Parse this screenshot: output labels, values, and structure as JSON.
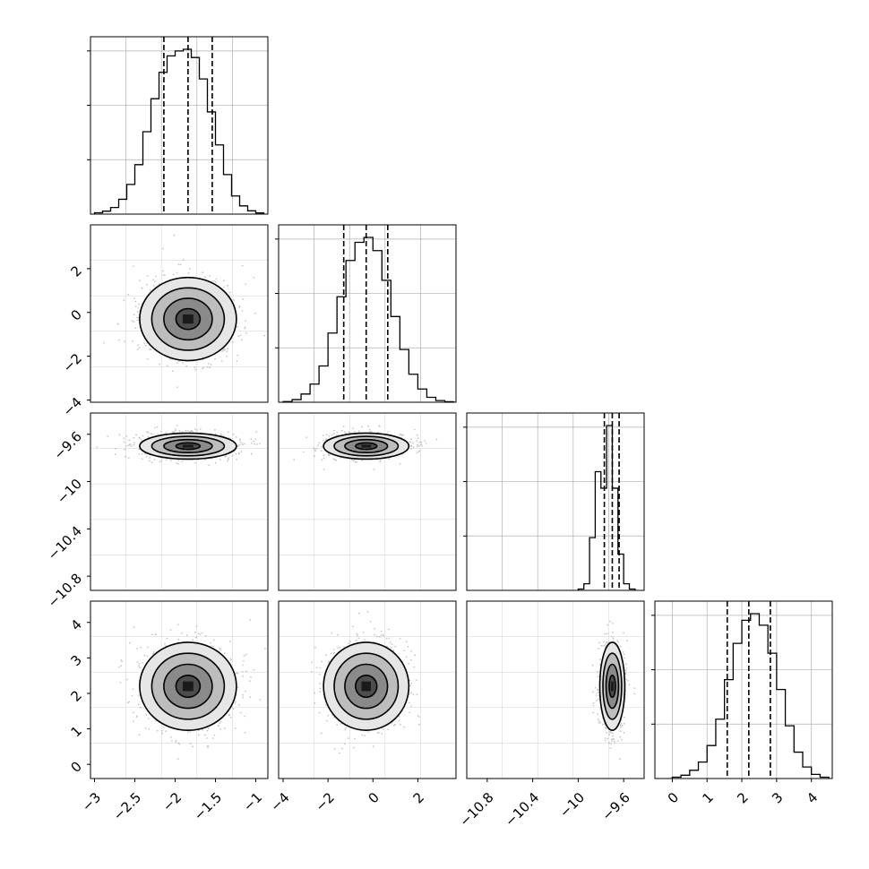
{
  "figure": {
    "kind": "corner-plot",
    "grid": true,
    "colors": {
      "line": "#000000",
      "grid": "#b0b0b0",
      "points": "#9a9a9a",
      "background": "#ffffff"
    }
  },
  "chart_data": [
    {
      "panel": "hist-p0",
      "type": "bar",
      "x_range": [
        -3.05,
        -0.85
      ],
      "bin_edges": [
        -3.0,
        -2.9,
        -2.8,
        -2.7,
        -2.6,
        -2.5,
        -2.4,
        -2.3,
        -2.2,
        -2.1,
        -2.0,
        -1.9,
        -1.8,
        -1.7,
        -1.6,
        -1.5,
        -1.4,
        -1.3,
        -1.2,
        -1.1,
        -1.0,
        -0.9
      ],
      "values": [
        0.008,
        0.018,
        0.04,
        0.09,
        0.18,
        0.3,
        0.5,
        0.7,
        0.86,
        0.96,
        0.99,
        1.0,
        0.95,
        0.82,
        0.62,
        0.42,
        0.24,
        0.11,
        0.05,
        0.02,
        0.007
      ],
      "quantile_lines": [
        -2.14,
        -1.84,
        -1.54
      ]
    },
    {
      "panel": "scatter-p1-vs-p0",
      "type": "scatter",
      "x_range": [
        -3.05,
        -0.85
      ],
      "y_range": [
        -4.1,
        4.0
      ],
      "yticks": [
        -4,
        -2,
        0,
        2
      ],
      "center": [
        -1.84,
        -0.3
      ],
      "spread": [
        0.3,
        0.95
      ],
      "contour_levels": [
        "0.5 sigma",
        "1 sigma",
        "1.5 sigma",
        "2 sigma"
      ]
    },
    {
      "panel": "hist-p1",
      "type": "bar",
      "x_range": [
        -4.2,
        3.7
      ],
      "bin_edges": [
        -4.0,
        -3.6,
        -3.2,
        -2.8,
        -2.4,
        -2.0,
        -1.6,
        -1.2,
        -0.8,
        -0.4,
        0.0,
        0.4,
        0.8,
        1.2,
        1.6,
        2.0,
        2.4,
        2.8,
        3.2,
        3.6
      ],
      "values": [
        0.004,
        0.016,
        0.05,
        0.11,
        0.22,
        0.42,
        0.64,
        0.86,
        0.97,
        1.0,
        0.92,
        0.74,
        0.52,
        0.32,
        0.17,
        0.08,
        0.03,
        0.01,
        0.003
      ],
      "quantile_lines": [
        -1.3,
        -0.3,
        0.66
      ]
    },
    {
      "panel": "scatter-p2-vs-p0",
      "type": "scatter",
      "x_range": [
        -3.05,
        -0.85
      ],
      "y_range": [
        -10.92,
        -9.42
      ],
      "yticks": [
        -10.8,
        -10.4,
        -10.0,
        -9.6
      ],
      "center": [
        -1.84,
        -9.7
      ],
      "spread": [
        0.3,
        0.055
      ],
      "contour_levels": [
        "0.5 sigma",
        "1 sigma",
        "1.5 sigma",
        "2 sigma"
      ]
    },
    {
      "panel": "scatter-p2-vs-p1",
      "type": "scatter",
      "x_range": [
        -4.2,
        3.7
      ],
      "y_range": [
        -10.92,
        -9.42
      ],
      "center": [
        -0.3,
        -9.7
      ],
      "spread": [
        0.95,
        0.055
      ],
      "contour_levels": [
        "0.5 sigma",
        "1 sigma",
        "1.5 sigma",
        "2 sigma"
      ]
    },
    {
      "panel": "hist-p2",
      "type": "bar",
      "x_range": [
        -10.98,
        -9.42
      ],
      "bin_edges": [
        -10.0,
        -9.95,
        -9.9,
        -9.85,
        -9.8,
        -9.75,
        -9.7,
        -9.65,
        -9.6,
        -9.55,
        -9.5
      ],
      "values": [
        0.008,
        0.04,
        0.32,
        0.72,
        0.62,
        1.0,
        0.62,
        0.22,
        0.04,
        0.008
      ],
      "quantile_lines": [
        -9.77,
        -9.7,
        -9.64
      ]
    },
    {
      "panel": "scatter-p3-vs-p0",
      "type": "scatter",
      "x_range": [
        -3.05,
        -0.85
      ],
      "y_range": [
        -0.4,
        4.6
      ],
      "xticks": [
        -3.0,
        -2.5,
        -2.0,
        -1.5,
        -1.0
      ],
      "yticks": [
        0,
        1,
        2,
        3,
        4
      ],
      "center": [
        -1.84,
        2.2
      ],
      "spread": [
        0.3,
        0.62
      ],
      "contour_levels": [
        "0.5 sigma",
        "1 sigma",
        "1.5 sigma",
        "2 sigma"
      ]
    },
    {
      "panel": "scatter-p3-vs-p1",
      "type": "scatter",
      "x_range": [
        -4.2,
        3.7
      ],
      "y_range": [
        -0.4,
        4.6
      ],
      "xticks": [
        -4,
        -2,
        0,
        2
      ],
      "center": [
        -0.3,
        2.2
      ],
      "spread": [
        0.95,
        0.62
      ],
      "contour_levels": [
        "0.5 sigma",
        "1 sigma",
        "1.5 sigma",
        "2 sigma"
      ]
    },
    {
      "panel": "scatter-p3-vs-p2",
      "type": "scatter",
      "x_range": [
        -10.98,
        -9.42
      ],
      "y_range": [
        -0.4,
        4.6
      ],
      "xticks": [
        -10.8,
        -10.4,
        -10.0,
        -9.6
      ],
      "center": [
        -9.7,
        2.2
      ],
      "spread": [
        0.055,
        0.62
      ],
      "contour_levels": [
        "0.5 sigma",
        "1 sigma",
        "1.5 sigma",
        "2 sigma"
      ]
    },
    {
      "panel": "hist-p3",
      "type": "bar",
      "x_range": [
        -0.5,
        4.6
      ],
      "xticks": [
        0,
        1,
        2,
        3,
        4
      ],
      "bin_edges": [
        0.0,
        0.25,
        0.5,
        0.75,
        1.0,
        1.25,
        1.5,
        1.75,
        2.0,
        2.25,
        2.5,
        2.75,
        3.0,
        3.25,
        3.5,
        3.75,
        4.0,
        4.25,
        4.5
      ],
      "values": [
        0.008,
        0.02,
        0.05,
        0.1,
        0.2,
        0.36,
        0.6,
        0.82,
        0.96,
        1.0,
        0.93,
        0.76,
        0.54,
        0.32,
        0.16,
        0.07,
        0.025,
        0.008
      ],
      "quantile_lines": [
        1.58,
        2.2,
        2.82
      ]
    }
  ]
}
